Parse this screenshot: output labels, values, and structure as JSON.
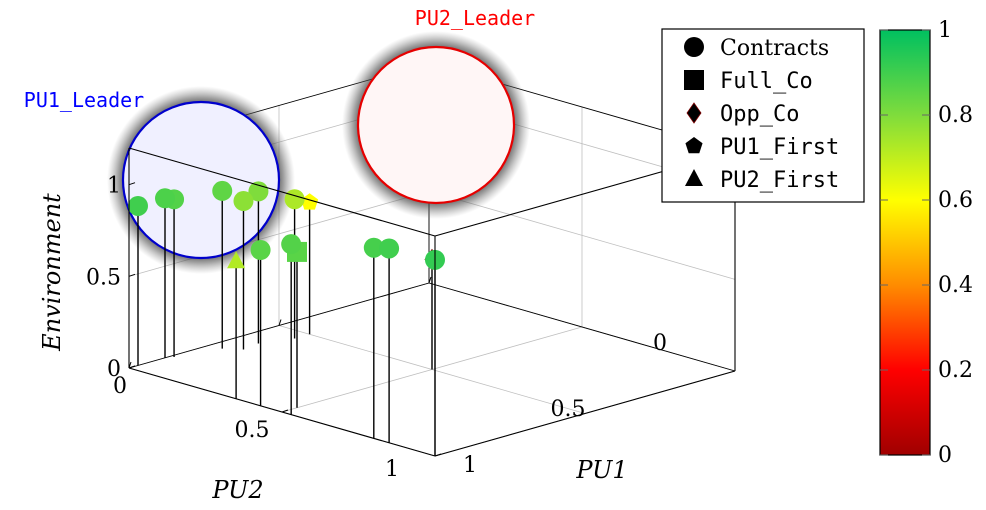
{
  "chart_data": {
    "type": "scatter",
    "projection": "3d",
    "xlabel": "PU1",
    "ylabel": "PU2",
    "zlabel": "Environment",
    "xlim": [
      0,
      1
    ],
    "ylim": [
      0,
      1
    ],
    "zlim": [
      0,
      1.2
    ],
    "x_ticks": [
      0,
      0.5,
      1
    ],
    "y_ticks": [
      0,
      0.5,
      1
    ],
    "z_ticks": [
      0,
      0.5,
      1
    ],
    "x_tick_labels": [
      "0",
      "0.5",
      "1"
    ],
    "y_tick_labels": [
      "0",
      "0.5",
      "1"
    ],
    "z_tick_labels": [
      "0",
      "0.5",
      "1"
    ],
    "grid": true,
    "stems": true,
    "legend_position": "top-right",
    "series": [
      {
        "name": "Contracts",
        "marker": "circle",
        "points": [
          {
            "x": 0.0,
            "y": 0.03,
            "z": 0.87,
            "c": 0.9
          },
          {
            "x": 0.0,
            "y": 0.12,
            "z": 0.87,
            "c": 0.88
          },
          {
            "x": 0.01,
            "y": 0.14,
            "z": 0.86,
            "c": 0.87
          },
          {
            "x": 0.04,
            "y": 0.27,
            "z": 0.86,
            "c": 0.85
          },
          {
            "x": 0.08,
            "y": 0.3,
            "z": 0.81,
            "c": 0.78
          },
          {
            "x": 0.07,
            "y": 0.36,
            "z": 0.83,
            "c": 0.8
          },
          {
            "x": 0.1,
            "y": 0.45,
            "z": 0.76,
            "c": 0.73
          },
          {
            "x": 0.43,
            "y": 0.0,
            "z": 0.85,
            "c": 0.86
          },
          {
            "x": 0.53,
            "y": 0.0,
            "z": 0.93,
            "c": 0.87
          },
          {
            "x": 0.8,
            "y": 0.0,
            "z": 1.04,
            "c": 0.89
          },
          {
            "x": 0.85,
            "y": 0.0,
            "z": 1.06,
            "c": 0.9
          },
          {
            "x": 1.0,
            "y": 0.0,
            "z": 1.07,
            "c": 0.92
          }
        ]
      },
      {
        "name": "Full_Co",
        "marker": "square",
        "points": [
          {
            "x": 0.5,
            "y": 0.05,
            "z": 0.85,
            "c": 0.86
          }
        ]
      },
      {
        "name": "Opp_Co",
        "marker": "diamond",
        "points": [
          {
            "x": 0.5,
            "y": 0.5,
            "z": 0.6,
            "c": 0.05
          }
        ]
      },
      {
        "name": "PU1_First",
        "marker": "pentagon",
        "points": [
          {
            "x": 0.1,
            "y": 0.5,
            "z": 0.72,
            "c": 0.6
          }
        ]
      },
      {
        "name": "PU2_First",
        "marker": "triangle",
        "points": [
          {
            "x": 0.35,
            "y": 0.0,
            "z": 0.75,
            "c": 0.72
          }
        ]
      }
    ],
    "highlights": [
      {
        "label": "PU1_Leader",
        "label_color": "#0000ff",
        "ring_color": "#0000cc",
        "fill": "#f0f0ff"
      },
      {
        "label": "PU2_Leader",
        "label_color": "#ff0000",
        "ring_color": "#e60000",
        "fill": "#fff6f6"
      }
    ],
    "colorbar": {
      "min": 0,
      "max": 1,
      "ticks": [
        0,
        0.2,
        0.4,
        0.6,
        0.8,
        1
      ],
      "tick_labels": [
        "0",
        "0.2",
        "0.4",
        "0.6",
        "0.8",
        "1"
      ],
      "colors": [
        "#a00000",
        "#ff0000",
        "#ff8c00",
        "#ffff00",
        "#7fdc3c",
        "#00c060"
      ]
    }
  }
}
